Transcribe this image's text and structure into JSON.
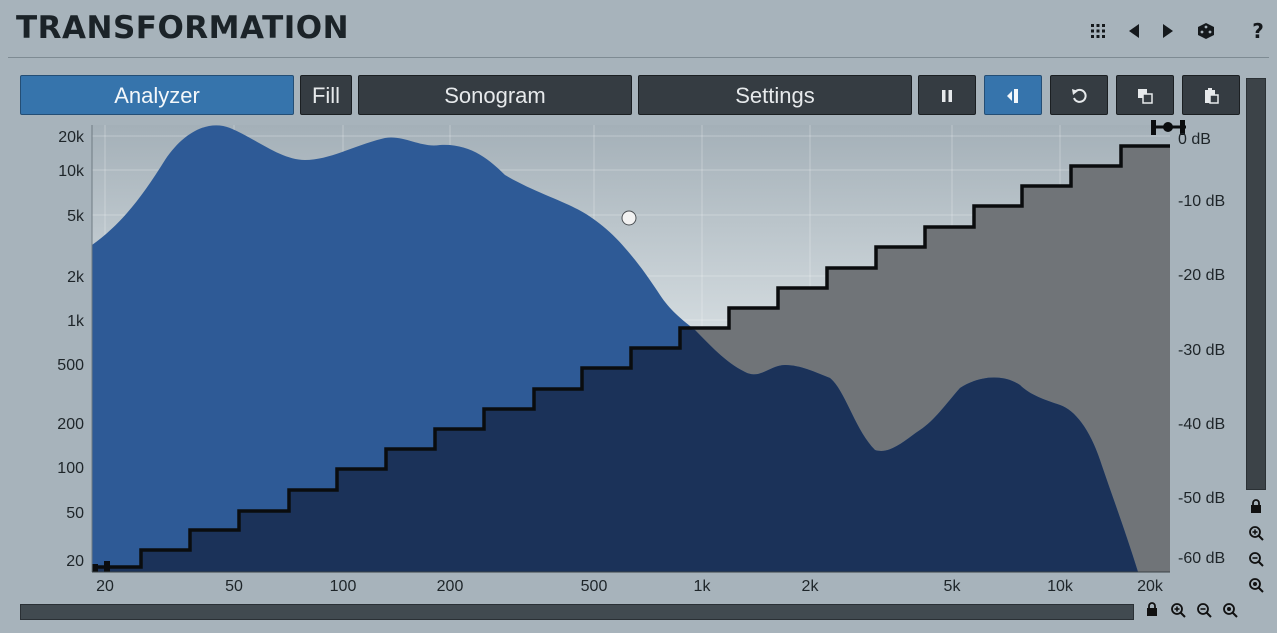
{
  "header": {
    "title": "TRANSFORMATION",
    "icons": [
      "grid-icon",
      "arrow-left-icon",
      "arrow-right-icon",
      "dice-icon",
      "help-icon"
    ],
    "help_label": "?"
  },
  "toolbar": {
    "analyzer_label": "Analyzer",
    "fill_label": "Fill",
    "sonogram_label": "Sonogram",
    "settings_label": "Settings",
    "icon_buttons": [
      "pause-icon",
      "flip-icon",
      "reset-icon",
      "copy-icon",
      "paste-icon"
    ]
  },
  "graph": {
    "y_left_labels": [
      "20k",
      "10k",
      "5k",
      "2k",
      "1k",
      "500",
      "200",
      "100",
      "50",
      "20"
    ],
    "y_right_labels": [
      "0 dB",
      "-10 dB",
      "-20 dB",
      "-30 dB",
      "-40 dB",
      "-50 dB",
      "-60 dB"
    ],
    "x_labels": [
      "20",
      "50",
      "100",
      "200",
      "500",
      "1k",
      "2k",
      "5k",
      "10k",
      "20k"
    ]
  },
  "colors": {
    "background": "#a7b3bb",
    "spectrum_blue": "#2e5a96",
    "spectrum_dark": "#1b3259",
    "mapping_area": "#707478",
    "accent": "#3674ac"
  }
}
